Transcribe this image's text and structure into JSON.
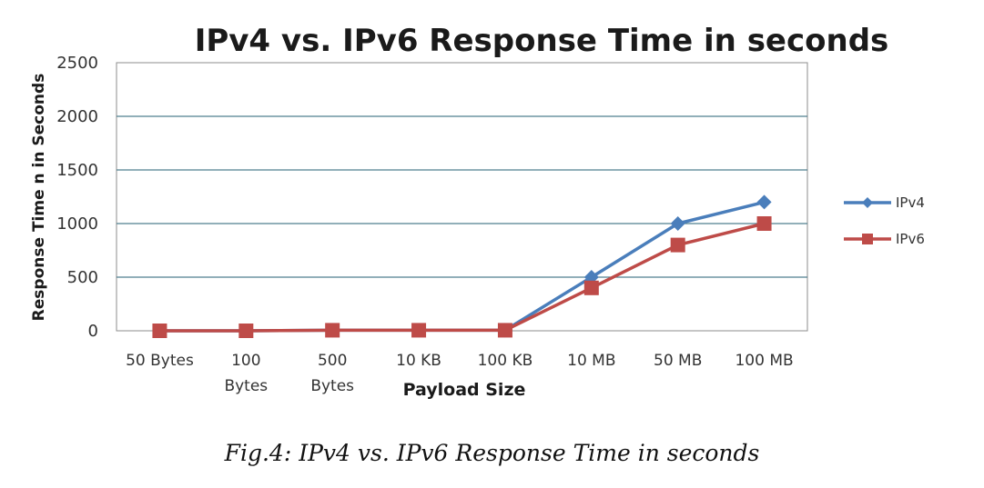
{
  "chart_data": {
    "type": "line",
    "title": "IPv4 vs. IPv6 Response Time in seconds",
    "xlabel": "Payload Size",
    "ylabel": "Response Time n in Seconds",
    "categories": [
      [
        "50  Bytes"
      ],
      [
        "100",
        "Bytes"
      ],
      [
        "500",
        "Bytes"
      ],
      [
        "10 KB"
      ],
      [
        "100 KB"
      ],
      [
        "10 MB"
      ],
      [
        "50 MB"
      ],
      [
        "100  MB"
      ]
    ],
    "ylim": [
      0,
      2500
    ],
    "yticks": [
      0,
      500,
      1000,
      1500,
      2000,
      2500
    ],
    "grid": true,
    "legend_position": "right",
    "series": [
      {
        "name": "IPv4",
        "color": "#4a7ebb",
        "marker": "diamond",
        "values": [
          0,
          0,
          5,
          5,
          5,
          500,
          1000,
          1200
        ]
      },
      {
        "name": "IPv6",
        "color": "#be4b48",
        "marker": "square",
        "values": [
          0,
          0,
          5,
          5,
          5,
          400,
          800,
          1000
        ]
      }
    ]
  },
  "caption": "Fig.4: IPv4 vs. IPv6 Response Time in seconds"
}
